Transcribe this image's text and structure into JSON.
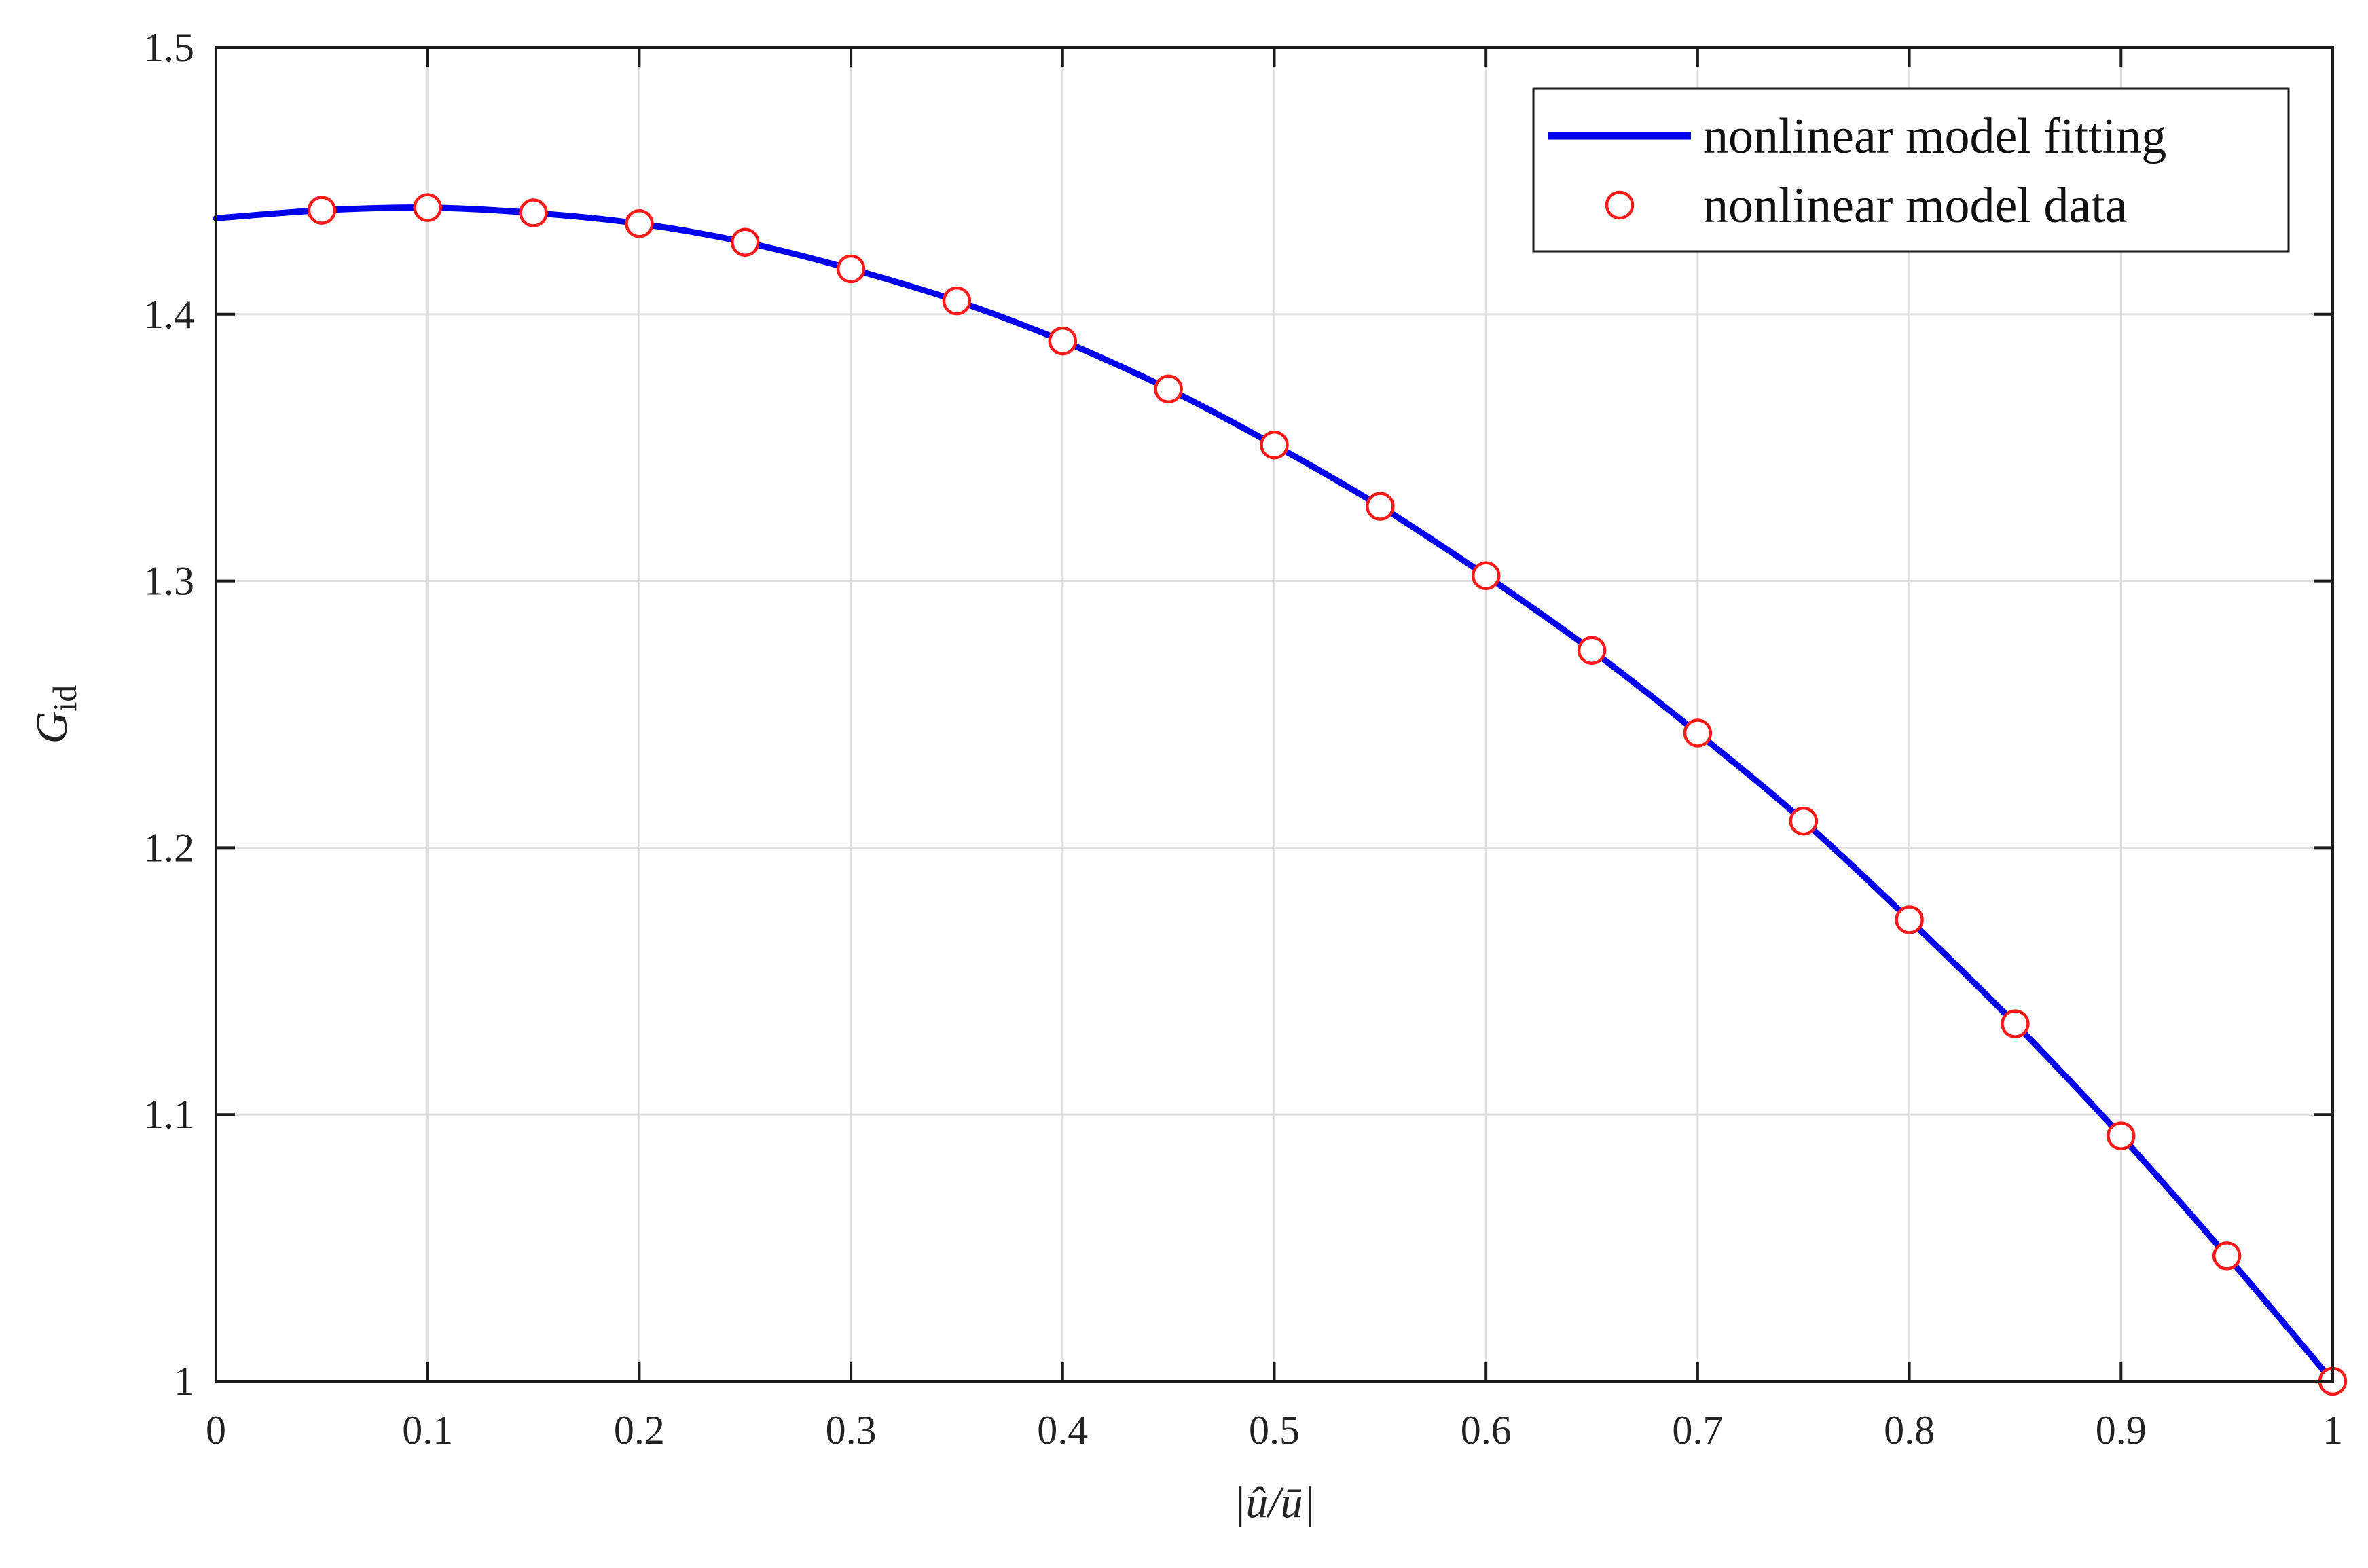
{
  "chart_data": {
    "type": "line",
    "title": "",
    "xlabel": "|û/ū|",
    "ylabel": "Gid",
    "ylabel_main": "G",
    "ylabel_sub": "id",
    "xlim": [
      0,
      1
    ],
    "ylim": [
      1,
      1.5
    ],
    "x_ticks": [
      "0",
      "0.1",
      "0.2",
      "0.3",
      "0.4",
      "0.5",
      "0.6",
      "0.7",
      "0.8",
      "0.9",
      "1"
    ],
    "y_ticks": [
      "1",
      "1.1",
      "1.2",
      "1.3",
      "1.4",
      "1.5"
    ],
    "grid": true,
    "legend_position": "top-right",
    "colors": {
      "fit_line": "#0000ee",
      "data_marker": "#ff1a1a"
    },
    "series": [
      {
        "name": "nonlinear model fitting",
        "style": "line",
        "x": [
          0,
          0.05,
          0.1,
          0.15,
          0.2,
          0.25,
          0.3,
          0.35,
          0.4,
          0.45,
          0.5,
          0.55,
          0.6,
          0.65,
          0.7,
          0.75,
          0.8,
          0.85,
          0.9,
          0.95,
          1.0
        ],
        "y": [
          1.436,
          1.439,
          1.44,
          1.438,
          1.434,
          1.427,
          1.417,
          1.405,
          1.39,
          1.372,
          1.351,
          1.328,
          1.302,
          1.274,
          1.243,
          1.21,
          1.173,
          1.134,
          1.092,
          1.047,
          1.0
        ]
      },
      {
        "name": "nonlinear model data",
        "style": "marker",
        "x": [
          0.05,
          0.1,
          0.15,
          0.2,
          0.25,
          0.3,
          0.35,
          0.4,
          0.45,
          0.5,
          0.55,
          0.6,
          0.65,
          0.7,
          0.75,
          0.8,
          0.85,
          0.9,
          0.95,
          1.0
        ],
        "y": [
          1.439,
          1.44,
          1.438,
          1.434,
          1.427,
          1.417,
          1.405,
          1.39,
          1.372,
          1.351,
          1.328,
          1.302,
          1.274,
          1.243,
          1.21,
          1.173,
          1.134,
          1.092,
          1.047,
          1.0
        ]
      }
    ]
  }
}
